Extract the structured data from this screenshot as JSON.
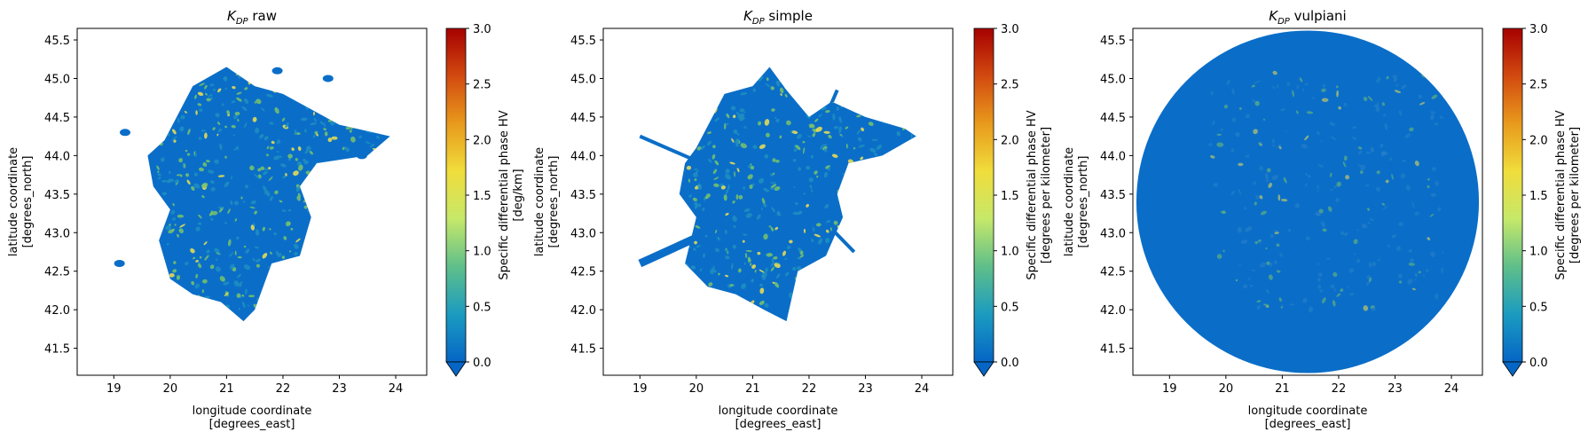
{
  "chart_data": [
    {
      "type": "heatmap",
      "title_symbol": "K",
      "title_subscript": "DP",
      "title_suffix": " raw",
      "xlabel_lines": [
        "longitude coordinate",
        "[degrees_east]"
      ],
      "ylabel_lines": [
        "latitude coordinate",
        "[degrees_north]"
      ],
      "xlim": [
        18.35,
        24.55
      ],
      "ylim": [
        41.15,
        45.65
      ],
      "xticks": [
        19,
        20,
        21,
        22,
        23,
        24
      ],
      "yticks": [
        41.5,
        42.0,
        42.5,
        43.0,
        43.5,
        44.0,
        44.5,
        45.0,
        45.5
      ],
      "colorbar": {
        "label_lines": [
          "Specific differential phase HV",
          "[deg/km]"
        ],
        "range": [
          0.0,
          3.0
        ],
        "ticks": [
          0.0,
          0.5,
          1.0,
          1.5,
          2.0,
          2.5,
          3.0
        ],
        "extend": "min"
      },
      "coverage": "irregular echo region"
    },
    {
      "type": "heatmap",
      "title_symbol": "K",
      "title_subscript": "DP",
      "title_suffix": " simple",
      "xlabel_lines": [
        "longitude coordinate",
        "[degrees_east]"
      ],
      "ylabel_lines": [
        "latitude coordinate",
        "[degrees_north]"
      ],
      "xlim": [
        18.35,
        24.55
      ],
      "ylim": [
        41.15,
        45.65
      ],
      "xticks": [
        19,
        20,
        21,
        22,
        23,
        24
      ],
      "yticks": [
        41.5,
        42.0,
        42.5,
        43.0,
        43.5,
        44.0,
        44.5,
        45.0,
        45.5
      ],
      "colorbar": {
        "label_lines": [
          "Specific differential phase HV",
          "[degrees per kilometer]"
        ],
        "range": [
          0.0,
          3.0
        ],
        "ticks": [
          0.0,
          0.5,
          1.0,
          1.5,
          2.0,
          2.5,
          3.0
        ],
        "extend": "min"
      },
      "coverage": "irregular echo region with radial spokes"
    },
    {
      "type": "heatmap",
      "title_symbol": "K",
      "title_subscript": "DP",
      "title_suffix": " vulpiani",
      "xlabel_lines": [
        "longitude coordinate",
        "[degrees_east]"
      ],
      "ylabel_lines": [
        "latitude coordinate",
        "[degrees_north]"
      ],
      "xlim": [
        18.35,
        24.55
      ],
      "ylim": [
        41.15,
        45.65
      ],
      "xticks": [
        19,
        20,
        21,
        22,
        23,
        24
      ],
      "yticks": [
        41.5,
        42.0,
        42.5,
        43.0,
        43.5,
        44.0,
        44.5,
        45.0,
        45.5
      ],
      "colorbar": {
        "label_lines": [
          "Specific differential phase HV",
          "[degrees per kilometer]"
        ],
        "range": [
          0.0,
          3.0
        ],
        "ticks": [
          0.0,
          0.5,
          1.0,
          1.5,
          2.0,
          2.5,
          3.0
        ],
        "extend": "min"
      },
      "coverage": "full radar disk"
    }
  ],
  "colors": {
    "base": "#0a6ec8",
    "low": "#1f8fbf",
    "mid": "#79c36a",
    "high": "#f0e050",
    "colormap": [
      "#0566c5",
      "#1b9bc0",
      "#5fbf8a",
      "#c6e86a",
      "#f0dd3c",
      "#e89a1c",
      "#d24a10",
      "#a60000"
    ]
  }
}
